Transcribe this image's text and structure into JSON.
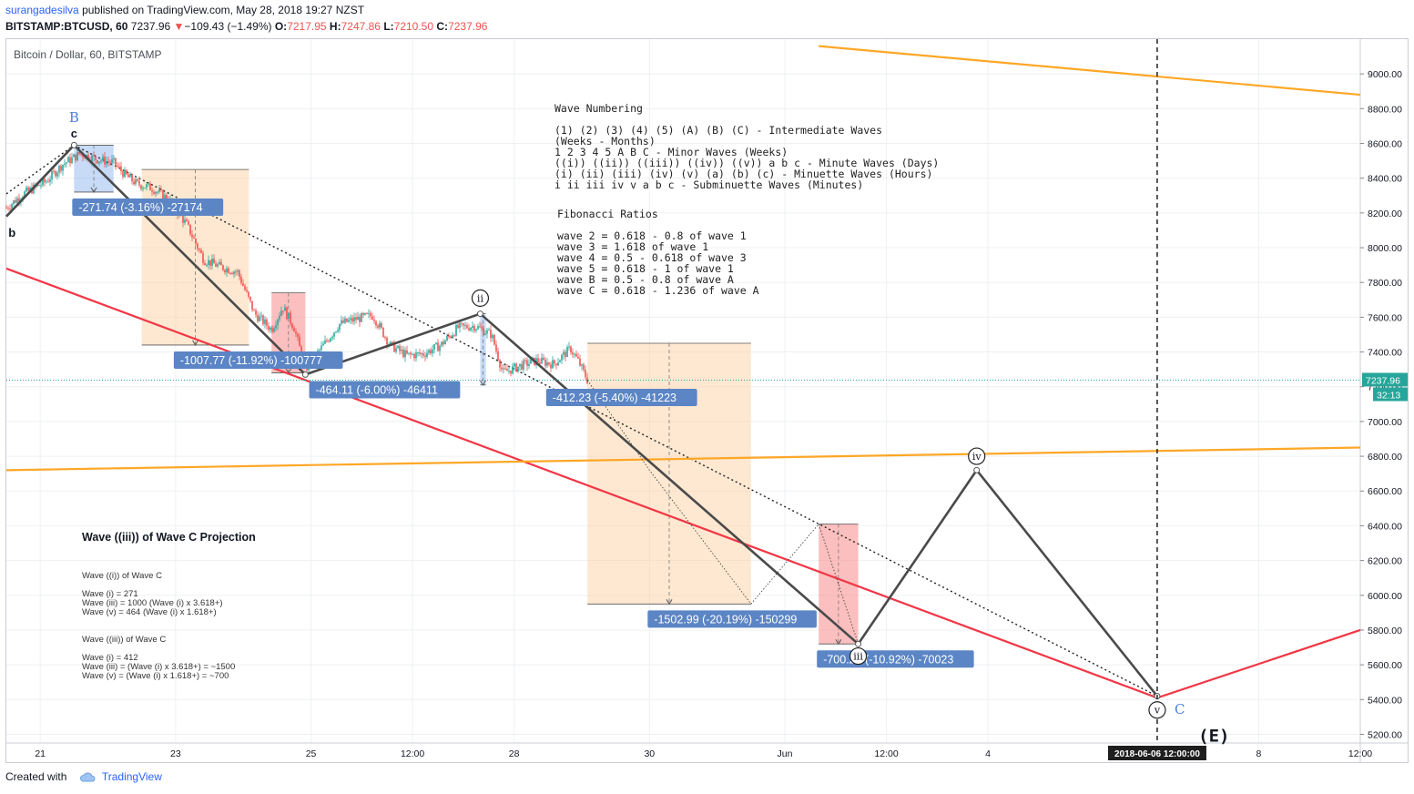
{
  "header": {
    "author": "surangadesilva",
    "published": "published on TradingView.com, May 28, 2018 19:27 NZST",
    "symbol": "BITSTAMP:BTCUSD, 60",
    "last": "7237.96",
    "change_arrow": "▼",
    "change": "−109.43 (−1.49%)",
    "o_label": "O:",
    "o": "7217.95",
    "h_label": "H:",
    "h": "7247.86",
    "l_label": "L:",
    "l": "7210.50",
    "c_label": "C:",
    "c": "7237.96"
  },
  "chart_title": "Bitcoin / Dollar, 60, BITSTAMP",
  "footer": {
    "created_with": "Created with",
    "brand": "TradingView"
  },
  "colors": {
    "up": "#26a69a",
    "down": "#ef5350",
    "wave": "#4a4a4a",
    "channel_red": "#f23645",
    "channel_orange": "#ffa726",
    "label_bg": "#5b85c5",
    "grid": "#eef0f3"
  },
  "chart_data": {
    "type": "line",
    "title": "Bitcoin / Dollar, 60, BITSTAMP",
    "ylim": [
      5150,
      9200
    ],
    "x_range": [
      "2018-05-20 12:00",
      "2018-06-09 12:00"
    ],
    "y_ticks": [
      "9000.00",
      "8800.00",
      "8600.00",
      "8400.00",
      "8200.00",
      "8000.00",
      "7800.00",
      "7600.00",
      "7400.00",
      "7200.00",
      "7000.00",
      "6800.00",
      "6600.00",
      "6400.00",
      "6200.00",
      "6000.00",
      "5800.00",
      "5600.00",
      "5400.00",
      "5200.00"
    ],
    "y_tick_values": [
      9000,
      8800,
      8600,
      8400,
      8200,
      8000,
      7800,
      7600,
      7400,
      7200,
      7000,
      6800,
      6600,
      6400,
      6200,
      6000,
      5800,
      5600,
      5400,
      5200
    ],
    "x_ticks": [
      {
        "label": "21",
        "t": "2018-05-21 00:00"
      },
      {
        "label": "23",
        "t": "2018-05-23 00:00"
      },
      {
        "label": "25",
        "t": "2018-05-25 00:00"
      },
      {
        "label": "12:00",
        "t": "2018-05-26 12:00"
      },
      {
        "label": "28",
        "t": "2018-05-28 00:00"
      },
      {
        "label": "30",
        "t": "2018-05-30 00:00"
      },
      {
        "label": "Jun",
        "t": "2018-06-01 00:00"
      },
      {
        "label": "12:00",
        "t": "2018-06-02 12:00"
      },
      {
        "label": "4",
        "t": "2018-06-04 00:00"
      },
      {
        "label": "8",
        "t": "2018-06-08 00:00"
      },
      {
        "label": "12:00",
        "t": "2018-06-09 12:00"
      }
    ],
    "last_price": 7237.96,
    "last_price_label": "7237.96",
    "countdown": "32:13",
    "crosshair": {
      "t": "2018-06-06 12:00",
      "label": "2018-06-06 12:00:00"
    },
    "price_path": [
      [
        "2018-05-20 12:00",
        8230
      ],
      [
        "2018-05-20 18:00",
        8310
      ],
      [
        "2018-05-21 02:00",
        8380
      ],
      [
        "2018-05-21 08:00",
        8480
      ],
      [
        "2018-05-21 14:00",
        8540
      ],
      [
        "2018-05-21 20:00",
        8510
      ],
      [
        "2018-05-22 02:00",
        8490
      ],
      [
        "2018-05-22 06:00",
        8420
      ],
      [
        "2018-05-22 10:00",
        8370
      ],
      [
        "2018-05-22 16:00",
        8340
      ],
      [
        "2018-05-22 22:00",
        8270
      ],
      [
        "2018-05-23 04:00",
        8130
      ],
      [
        "2018-05-23 10:00",
        7930
      ],
      [
        "2018-05-23 16:00",
        7890
      ],
      [
        "2018-05-23 22:00",
        7860
      ],
      [
        "2018-05-24 04:00",
        7620
      ],
      [
        "2018-05-24 10:00",
        7530
      ],
      [
        "2018-05-24 14:00",
        7660
      ],
      [
        "2018-05-24 18:00",
        7540
      ],
      [
        "2018-05-24 22:00",
        7300
      ],
      [
        "2018-05-25 04:00",
        7430
      ],
      [
        "2018-05-25 10:00",
        7560
      ],
      [
        "2018-05-25 16:00",
        7590
      ],
      [
        "2018-05-25 22:00",
        7610
      ],
      [
        "2018-05-26 04:00",
        7440
      ],
      [
        "2018-05-26 10:00",
        7380
      ],
      [
        "2018-05-26 16:00",
        7390
      ],
      [
        "2018-05-26 22:00",
        7440
      ],
      [
        "2018-05-27 04:00",
        7540
      ],
      [
        "2018-05-27 10:00",
        7550
      ],
      [
        "2018-05-27 16:00",
        7500
      ],
      [
        "2018-05-27 20:00",
        7280
      ],
      [
        "2018-05-28 02:00",
        7320
      ],
      [
        "2018-05-28 08:00",
        7350
      ],
      [
        "2018-05-28 14:00",
        7330
      ],
      [
        "2018-05-28 20:00",
        7420
      ],
      [
        "2018-05-28 23:00",
        7340
      ],
      [
        "2018-05-29 02:00",
        7238
      ]
    ],
    "projection_path": [
      [
        "2018-05-29 02:00",
        7238
      ],
      [
        "2018-05-30 00:00",
        6720
      ],
      [
        "2018-05-31 12:00",
        5950
      ],
      [
        "2018-06-01 12:00",
        6410
      ],
      [
        "2018-06-02 02:00",
        5720
      ],
      [
        "2018-06-03 20:00",
        6720
      ],
      [
        "2018-06-06 12:00",
        5420
      ]
    ],
    "wave_lines": [
      {
        "from": [
          "2018-05-20 12:00",
          8180
        ],
        "to": [
          "2018-05-21 12:00",
          8590
        ]
      },
      {
        "from": [
          "2018-05-21 12:00",
          8590
        ],
        "to": [
          "2018-05-24 22:00",
          7270
        ]
      },
      {
        "from": [
          "2018-05-24 22:00",
          7270
        ],
        "to": [
          "2018-05-27 12:00",
          7620
        ]
      },
      {
        "from": [
          "2018-05-27 12:00",
          7620
        ],
        "to": [
          "2018-06-02 02:00",
          5720
        ]
      },
      {
        "from": [
          "2018-06-02 02:00",
          5720
        ],
        "to": [
          "2018-06-03 20:00",
          6720
        ]
      },
      {
        "from": [
          "2018-06-03 20:00",
          6720
        ],
        "to": [
          "2018-06-06 12:00",
          5420
        ]
      }
    ],
    "trend_lines": [
      {
        "style": "dotted",
        "from": [
          "2018-05-20 12:00",
          8310
        ],
        "to": [
          "2018-05-21 12:00",
          8590
        ]
      },
      {
        "style": "dotted",
        "from": [
          "2018-05-21 12:00",
          8590
        ],
        "to": [
          "2018-06-06 12:00",
          5420
        ]
      },
      {
        "style": "red",
        "from": [
          "2018-05-20 12:00",
          7880
        ],
        "to": [
          "2018-06-06 12:00",
          5410
        ]
      },
      {
        "style": "red",
        "from": [
          "2018-06-06 12:00",
          5410
        ],
        "to": [
          "2018-06-09 12:00",
          5800
        ]
      },
      {
        "style": "orange",
        "from": [
          "2018-05-20 12:00",
          6720
        ],
        "to": [
          "2018-06-09 12:00",
          6850
        ]
      },
      {
        "style": "orange",
        "from": [
          "2018-06-01 12:00",
          9160
        ],
        "to": [
          "2018-06-09 12:00",
          8880
        ]
      }
    ],
    "boxes": [
      {
        "kind": "blue",
        "t1": "2018-05-21 12:00",
        "t2": "2018-05-22 02:00",
        "p1": 8590,
        "p2": 8320,
        "label": "-271.74 (-3.16%) -27174",
        "label_at": [
          "2018-05-21 12:00",
          8220
        ]
      },
      {
        "kind": "orange",
        "t1": "2018-05-22 12:00",
        "t2": "2018-05-24 02:00",
        "p1": 8450,
        "p2": 7440,
        "label": "-1007.77 (-11.92%) -100777",
        "label_at": [
          "2018-05-23 00:00",
          7340
        ]
      },
      {
        "kind": "red",
        "t1": "2018-05-24 10:00",
        "t2": "2018-05-24 22:00",
        "p1": 7740,
        "p2": 7280,
        "label": "-464.11 (-6.00%) -46411",
        "label_at": [
          "2018-05-25 00:00",
          7170
        ]
      },
      {
        "kind": "blue",
        "t1": "2018-05-27 12:00",
        "t2": "2018-05-27 14:00",
        "p1": 7620,
        "p2": 7210,
        "label": "-412.23 (-5.40%) -41223",
        "label_at": [
          "2018-05-28 12:00",
          7125
        ]
      },
      {
        "kind": "orange",
        "t1": "2018-05-29 02:00",
        "t2": "2018-05-31 12:00",
        "p1": 7450,
        "p2": 5950,
        "label": "-1502.99 (-20.19%) -150299",
        "label_at": [
          "2018-05-30 00:00",
          5850
        ]
      },
      {
        "kind": "red",
        "t1": "2018-06-01 12:00",
        "t2": "2018-06-02 02:00",
        "p1": 6410,
        "p2": 5720,
        "label": "-700.23 (-10.92%) -70023",
        "label_at": [
          "2018-06-01 12:00",
          5620
        ]
      }
    ],
    "wave_marks": [
      {
        "text": "B",
        "t": "2018-05-21 12:00",
        "p": 8755,
        "style": "blue"
      },
      {
        "text": "c",
        "t": "2018-05-21 12:00",
        "p": 8660,
        "style": "black"
      },
      {
        "text": "b",
        "t": "2018-05-20 14:00",
        "p": 8090,
        "style": "black"
      },
      {
        "text": "ii",
        "t": "2018-05-27 12:00",
        "p": 7710,
        "style": "circle"
      },
      {
        "text": "iii",
        "t": "2018-06-02 02:00",
        "p": 5650,
        "style": "circle"
      },
      {
        "text": "iv",
        "t": "2018-06-03 20:00",
        "p": 6800,
        "style": "circle"
      },
      {
        "text": "v",
        "t": "2018-06-06 12:00",
        "p": 5340,
        "style": "circle"
      },
      {
        "text": "C",
        "t": "2018-06-06 20:00",
        "p": 5350,
        "style": "blue"
      },
      {
        "text": "(E)",
        "t": "2018-06-06 16:00",
        "p": 5200,
        "style": "big"
      }
    ]
  },
  "notes": {
    "wave_title": "Wave Numbering",
    "wave_lines": [
      "(1) (2) (3) (4) (5) (A) (B) (C) - Intermediate Waves",
      "(Weeks - Months)",
      "1 2 3 4 5 A B C - Minor Waves (Weeks)",
      "((i)) ((ii)) ((iii)) ((iv)) ((v)) a b c - Minute Waves (Days)",
      "(i) (ii) (iii) (iv) (v) (a) (b) (c) - Minuette Waves (Hours)",
      "i ii iii iv v a b c - Subminuette Waves (Minutes)"
    ],
    "fib_title": "Fibonacci Ratios",
    "fib_lines": [
      "wave 2 = 0.618 - 0.8 of wave 1",
      "wave 3 = 1.618 of wave 1",
      "wave 4 = 0.5 - 0.618 of wave 3",
      "wave 5 = 0.618 - 1 of wave 1",
      "wave B = 0.5 - 0.8 of wave A",
      "wave C = 0.618 - 1.236 of wave A"
    ],
    "proj_title": "Wave ((iii)) of Wave C Projection",
    "proj_block1": [
      "Wave ((i)) of Wave C",
      "",
      "Wave (i) = 271",
      "Wave (iii) = 1000 (Wave (i) x 3.618+)",
      "Wave (v) = 464 (Wave (i) x 1.618+)"
    ],
    "proj_block2": [
      "Wave ((iii)) of Wave C",
      "",
      "Wave (i) = 412",
      "Wave (iii) = (Wave (i) x 3.618+) = ~1500",
      "Wave (v) = (Wave (i) x 1.618+) = ~700"
    ]
  }
}
